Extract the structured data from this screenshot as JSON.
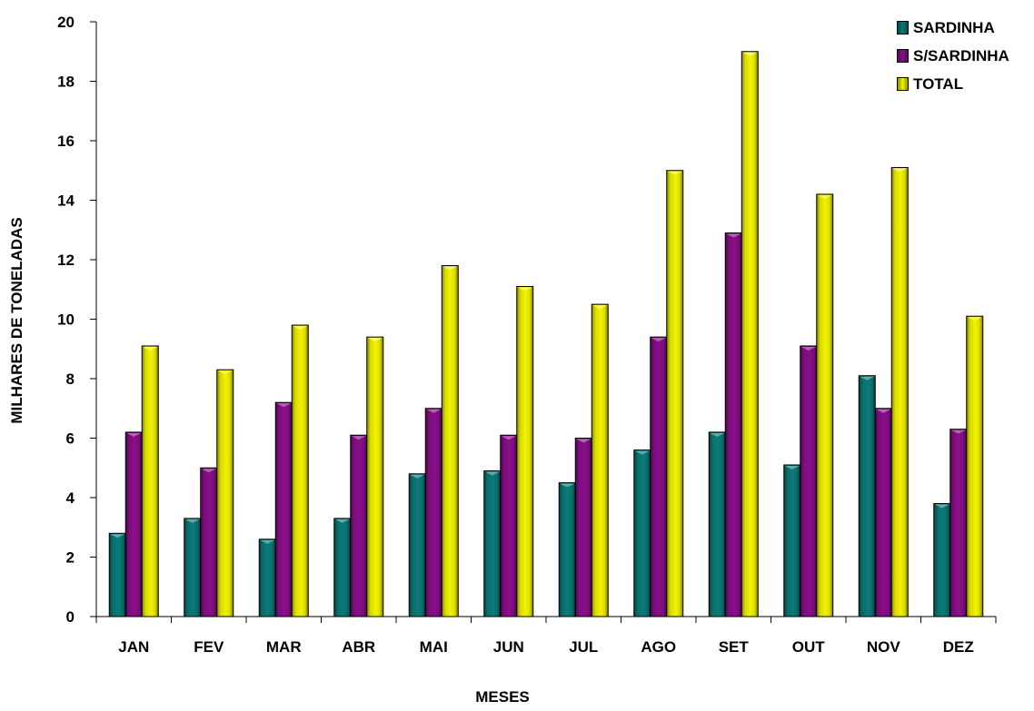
{
  "chart_data": {
    "type": "bar",
    "title": "",
    "xlabel": "MESES",
    "ylabel": "MILHARES DE TONELADAS",
    "ylim": [
      0,
      20
    ],
    "yticks": [
      0,
      2,
      4,
      6,
      8,
      10,
      12,
      14,
      16,
      18,
      20
    ],
    "grid": false,
    "legend_position": "top-right",
    "categories": [
      "JAN",
      "FEV",
      "MAR",
      "ABR",
      "MAI",
      "JUN",
      "JUL",
      "AGO",
      "SET",
      "OUT",
      "NOV",
      "DEZ"
    ],
    "series": [
      {
        "name": "SARDINHA",
        "color": "#0b7a78",
        "values": [
          2.8,
          3.3,
          2.6,
          3.3,
          4.8,
          4.9,
          4.5,
          5.6,
          6.2,
          5.1,
          8.1,
          3.8
        ]
      },
      {
        "name": "S/SARDINHA",
        "color": "#8a0f8a",
        "values": [
          6.2,
          5.0,
          7.2,
          6.1,
          7.0,
          6.1,
          6.0,
          9.4,
          12.9,
          9.1,
          7.0,
          6.3
        ]
      },
      {
        "name": "TOTAL",
        "color": "#f2f200",
        "values": [
          9.1,
          8.3,
          9.8,
          9.4,
          11.8,
          11.1,
          10.5,
          15.0,
          19.0,
          14.2,
          15.1,
          10.1
        ]
      }
    ]
  }
}
